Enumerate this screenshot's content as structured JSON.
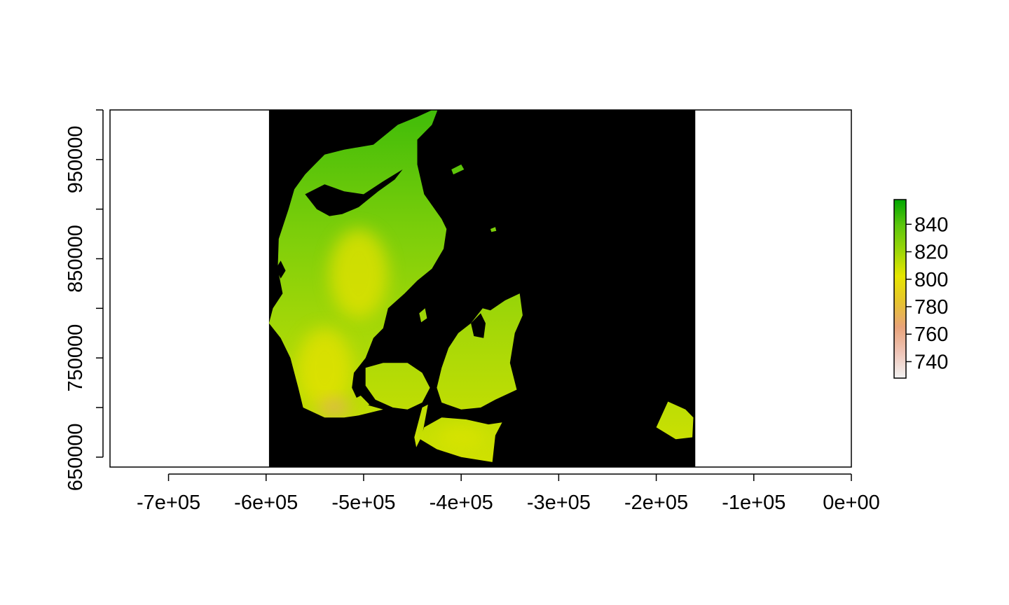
{
  "chart_data": {
    "type": "heatmap",
    "title": "",
    "xlabel": "",
    "ylabel": "",
    "xlim": [
      -760000,
      0
    ],
    "ylim": [
      640000,
      1000000
    ],
    "raster_extent": {
      "x": [
        -597000,
        -160000
      ],
      "y": [
        640000,
        1000000
      ]
    },
    "x_ticks": [
      -700000,
      -600000,
      -500000,
      -400000,
      -300000,
      -200000,
      -100000,
      0
    ],
    "x_tick_labels": [
      "-7e+05",
      "-6e+05",
      "-5e+05",
      "-4e+05",
      "-3e+05",
      "-2e+05",
      "-1e+05",
      "0e+00"
    ],
    "y_ticks": [
      650000,
      700000,
      750000,
      800000,
      850000,
      900000,
      950000,
      1000000
    ],
    "y_tick_labels": [
      "650000",
      "",
      "750000",
      "",
      "850000",
      "",
      "950000",
      ""
    ],
    "background_value_color": "#000000",
    "colorscale": {
      "palette": "terrain",
      "range": [
        728,
        858
      ],
      "ticks": [
        740,
        760,
        780,
        800,
        820,
        840
      ],
      "tick_labels": [
        "740",
        "760",
        "780",
        "800",
        "820",
        "840"
      ],
      "colors": [
        "#F2F2F2",
        "#EFC5B8",
        "#E8A37A",
        "#E6C42E",
        "#E6E600",
        "#9BD608",
        "#5CC60D",
        "#00A600"
      ]
    },
    "land_masses": [
      {
        "name": "jutland",
        "points": [
          [
            -540000,
            955000
          ],
          [
            -520000,
            960000
          ],
          [
            -490000,
            965000
          ],
          [
            -465000,
            985000
          ],
          [
            -445000,
            993000
          ],
          [
            -423000,
            1003000
          ],
          [
            -430000,
            985000
          ],
          [
            -445000,
            970000
          ],
          [
            -445000,
            945000
          ],
          [
            -438000,
            915000
          ],
          [
            -420000,
            890000
          ],
          [
            -415000,
            880000
          ],
          [
            -418000,
            860000
          ],
          [
            -430000,
            840000
          ],
          [
            -445000,
            828000
          ],
          [
            -458000,
            815000
          ],
          [
            -475000,
            800000
          ],
          [
            -480000,
            780000
          ],
          [
            -490000,
            770000
          ],
          [
            -498000,
            750000
          ],
          [
            -510000,
            735000
          ],
          [
            -512000,
            720000
          ],
          [
            -505000,
            705000
          ],
          [
            -480000,
            698000
          ],
          [
            -505000,
            692000
          ],
          [
            -520000,
            690000
          ],
          [
            -540000,
            690000
          ],
          [
            -562000,
            700000
          ],
          [
            -567000,
            720000
          ],
          [
            -575000,
            750000
          ],
          [
            -585000,
            770000
          ],
          [
            -597000,
            785000
          ],
          [
            -593000,
            800000
          ],
          [
            -583000,
            815000
          ],
          [
            -588000,
            840000
          ],
          [
            -587000,
            870000
          ],
          [
            -577000,
            900000
          ],
          [
            -571000,
            920000
          ],
          [
            -560000,
            935000
          ],
          [
            -550000,
            945000
          ]
        ]
      },
      {
        "name": "funen",
        "points": [
          [
            -498000,
            740000
          ],
          [
            -480000,
            745000
          ],
          [
            -455000,
            745000
          ],
          [
            -440000,
            735000
          ],
          [
            -432000,
            720000
          ],
          [
            -440000,
            705000
          ],
          [
            -455000,
            698000
          ],
          [
            -470000,
            700000
          ],
          [
            -488000,
            708000
          ],
          [
            -498000,
            722000
          ]
        ]
      },
      {
        "name": "zealand",
        "points": [
          [
            -413000,
            760000
          ],
          [
            -403000,
            775000
          ],
          [
            -390000,
            785000
          ],
          [
            -378000,
            800000
          ],
          [
            -370000,
            798000
          ],
          [
            -355000,
            808000
          ],
          [
            -340000,
            815000
          ],
          [
            -337000,
            793000
          ],
          [
            -345000,
            775000
          ],
          [
            -350000,
            745000
          ],
          [
            -343000,
            718000
          ],
          [
            -365000,
            708000
          ],
          [
            -380000,
            700000
          ],
          [
            -400000,
            698000
          ],
          [
            -420000,
            705000
          ],
          [
            -425000,
            720000
          ],
          [
            -420000,
            740000
          ]
        ]
      },
      {
        "name": "lolland-falster",
        "points": [
          [
            -438000,
            680000
          ],
          [
            -420000,
            690000
          ],
          [
            -395000,
            688000
          ],
          [
            -372000,
            683000
          ],
          [
            -358000,
            685000
          ],
          [
            -365000,
            672000
          ],
          [
            -368000,
            645000
          ],
          [
            -400000,
            650000
          ],
          [
            -425000,
            658000
          ],
          [
            -442000,
            668000
          ]
        ]
      },
      {
        "name": "bornholm",
        "points": [
          [
            -188000,
            706000
          ],
          [
            -170000,
            698000
          ],
          [
            -162000,
            690000
          ],
          [
            -163000,
            670000
          ],
          [
            -180000,
            668000
          ],
          [
            -200000,
            680000
          ]
        ]
      },
      {
        "name": "laeso",
        "points": [
          [
            -410000,
            940000
          ],
          [
            -400000,
            945000
          ],
          [
            -397000,
            940000
          ],
          [
            -408000,
            935000
          ]
        ]
      },
      {
        "name": "anholt",
        "points": [
          [
            -370000,
            880000
          ],
          [
            -365000,
            882000
          ],
          [
            -364000,
            878000
          ],
          [
            -369000,
            877000
          ]
        ]
      },
      {
        "name": "samso",
        "points": [
          [
            -443000,
            795000
          ],
          [
            -437000,
            800000
          ],
          [
            -435000,
            790000
          ],
          [
            -441000,
            786000
          ]
        ]
      },
      {
        "name": "langeland",
        "points": [
          [
            -440000,
            700000
          ],
          [
            -434000,
            703000
          ],
          [
            -440000,
            672000
          ],
          [
            -446000,
            660000
          ],
          [
            -448000,
            670000
          ]
        ]
      },
      {
        "name": "als",
        "points": [
          [
            -517000,
            705000
          ],
          [
            -503000,
            712000
          ],
          [
            -494000,
            703000
          ],
          [
            -505000,
            698000
          ]
        ]
      }
    ],
    "water_inlets": [
      {
        "name": "limfjord",
        "points": [
          [
            -560000,
            915000
          ],
          [
            -540000,
            925000
          ],
          [
            -520000,
            918000
          ],
          [
            -500000,
            915000
          ],
          [
            -480000,
            928000
          ],
          [
            -460000,
            940000
          ],
          [
            -468000,
            930000
          ],
          [
            -485000,
            918000
          ],
          [
            -505000,
            902000
          ],
          [
            -522000,
            895000
          ],
          [
            -535000,
            893000
          ],
          [
            -548000,
            900000
          ]
        ]
      },
      {
        "name": "ringkobing-fjord",
        "points": [
          [
            -590000,
            840000
          ],
          [
            -585000,
            848000
          ],
          [
            -580000,
            838000
          ],
          [
            -585000,
            830000
          ]
        ]
      },
      {
        "name": "isefjord",
        "points": [
          [
            -390000,
            785000
          ],
          [
            -380000,
            795000
          ],
          [
            -375000,
            785000
          ],
          [
            -377000,
            770000
          ],
          [
            -387000,
            772000
          ]
        ]
      }
    ],
    "elevation_highlights": [
      {
        "name": "mid-jutland-ridge",
        "cx": -505000,
        "cy": 835000,
        "rx": 30000,
        "ry": 45000,
        "value": 800
      },
      {
        "name": "south-jutland",
        "cx": -540000,
        "cy": 740000,
        "rx": 28000,
        "ry": 40000,
        "value": 800
      },
      {
        "name": "south-jutland-lowland",
        "cx": -530000,
        "cy": 700000,
        "rx": 16000,
        "ry": 9000,
        "value": 770
      },
      {
        "name": "lolland-central",
        "cx": -400000,
        "cy": 670000,
        "rx": 25000,
        "ry": 12000,
        "value": 805
      }
    ]
  }
}
